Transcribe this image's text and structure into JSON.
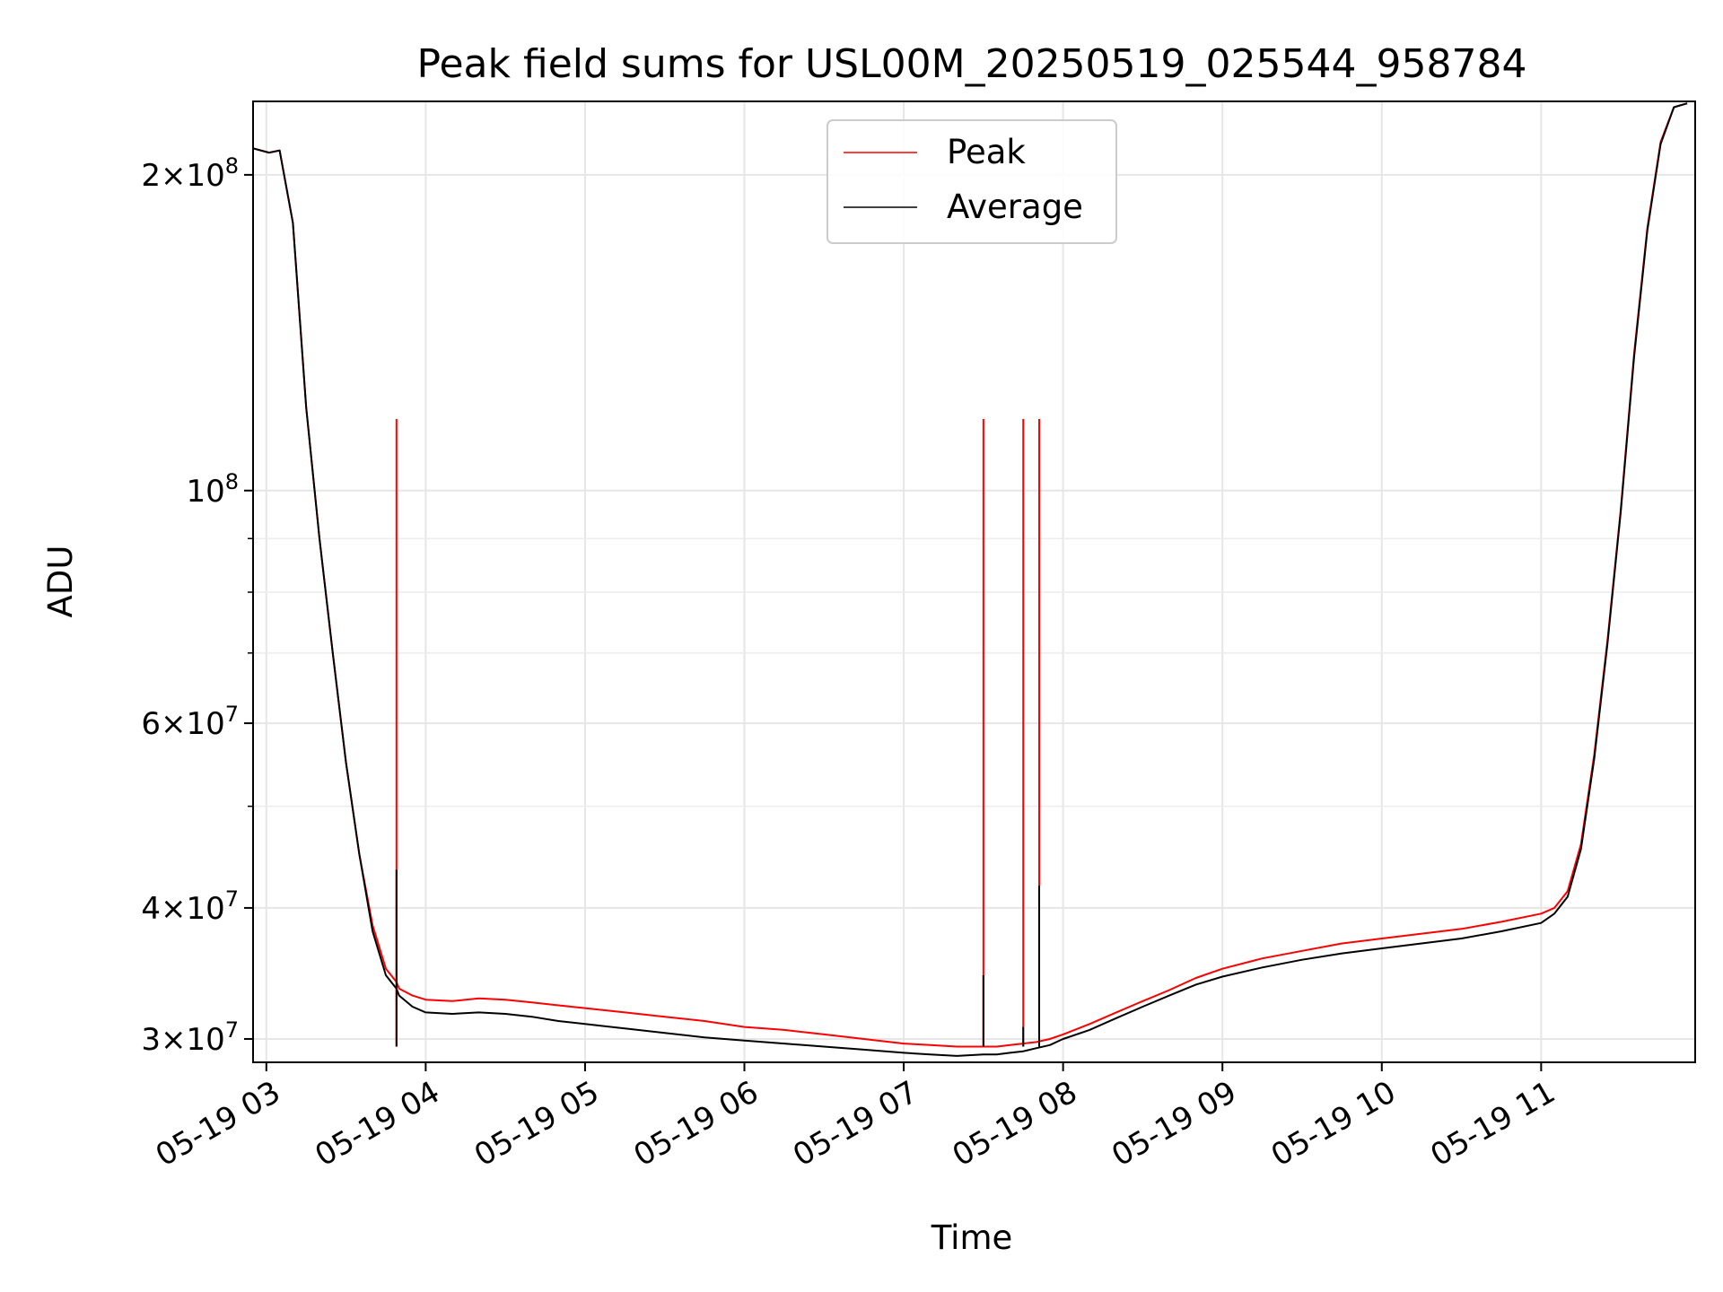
{
  "chart_data": {
    "type": "line",
    "title": "Peak field sums for USL00M_20250519_025544_958784",
    "xlabel": "Time",
    "ylabel": "ADU",
    "y_scale": "log",
    "ylim": [
      28500000,
      235000000
    ],
    "xlim": [
      "2025-05-19 02:55",
      "2025-05-19 11:58"
    ],
    "grid": true,
    "legend": {
      "placement": "top-center"
    },
    "x_ticks": [
      {
        "t": "2025-05-19 03:00",
        "label": "05-19 03"
      },
      {
        "t": "2025-05-19 04:00",
        "label": "05-19 04"
      },
      {
        "t": "2025-05-19 05:00",
        "label": "05-19 05"
      },
      {
        "t": "2025-05-19 06:00",
        "label": "05-19 06"
      },
      {
        "t": "2025-05-19 07:00",
        "label": "05-19 07"
      },
      {
        "t": "2025-05-19 08:00",
        "label": "05-19 08"
      },
      {
        "t": "2025-05-19 09:00",
        "label": "05-19 09"
      },
      {
        "t": "2025-05-19 10:00",
        "label": "05-19 10"
      },
      {
        "t": "2025-05-19 11:00",
        "label": "05-19 11"
      }
    ],
    "y_ticks": [
      {
        "v": 30000000,
        "mant": "3",
        "exp": "7"
      },
      {
        "v": 40000000,
        "mant": "4",
        "exp": "7"
      },
      {
        "v": 60000000,
        "mant": "6",
        "exp": "7"
      },
      {
        "v": 100000000,
        "mant": "",
        "exp": "8"
      },
      {
        "v": 200000000,
        "mant": "2",
        "exp": "8"
      }
    ],
    "y_minor_ticks": [
      50000000,
      70000000,
      80000000,
      90000000
    ],
    "series": [
      {
        "name": "Peak",
        "color": "#ff0000",
        "x": [
          "2025-05-19 02:55",
          "2025-05-19 03:01",
          "2025-05-19 03:05",
          "2025-05-19 03:10",
          "2025-05-19 03:15",
          "2025-05-19 03:20",
          "2025-05-19 03:25",
          "2025-05-19 03:30",
          "2025-05-19 03:35",
          "2025-05-19 03:40",
          "2025-05-19 03:45",
          "2025-05-19 03:49",
          "2025-05-19 03:50",
          "2025-05-19 03:55",
          "2025-05-19 04:00",
          "2025-05-19 04:10",
          "2025-05-19 04:20",
          "2025-05-19 04:30",
          "2025-05-19 04:40",
          "2025-05-19 04:50",
          "2025-05-19 05:00",
          "2025-05-19 05:15",
          "2025-05-19 05:30",
          "2025-05-19 05:45",
          "2025-05-19 06:00",
          "2025-05-19 06:15",
          "2025-05-19 06:30",
          "2025-05-19 06:45",
          "2025-05-19 07:00",
          "2025-05-19 07:10",
          "2025-05-19 07:20",
          "2025-05-19 07:30",
          "2025-05-19 07:35",
          "2025-05-19 07:40",
          "2025-05-19 07:45",
          "2025-05-19 07:50",
          "2025-05-19 07:55",
          "2025-05-19 08:00",
          "2025-05-19 08:10",
          "2025-05-19 08:20",
          "2025-05-19 08:30",
          "2025-05-19 08:40",
          "2025-05-19 08:50",
          "2025-05-19 09:00",
          "2025-05-19 09:15",
          "2025-05-19 09:30",
          "2025-05-19 09:45",
          "2025-05-19 10:00",
          "2025-05-19 10:15",
          "2025-05-19 10:30",
          "2025-05-19 10:45",
          "2025-05-19 11:00",
          "2025-05-19 11:05",
          "2025-05-19 11:10",
          "2025-05-19 11:15",
          "2025-05-19 11:20",
          "2025-05-19 11:25",
          "2025-05-19 11:30",
          "2025-05-19 11:35",
          "2025-05-19 11:40",
          "2025-05-19 11:45",
          "2025-05-19 11:50",
          "2025-05-19 11:55"
        ],
        "y": [
          212000000,
          210000000,
          211000000,
          180000000,
          120000000,
          90000000,
          70000000,
          55000000,
          45000000,
          38500000,
          35000000,
          34000000,
          33500000,
          33000000,
          32700000,
          32600000,
          32800000,
          32700000,
          32500000,
          32300000,
          32100000,
          31800000,
          31500000,
          31200000,
          30800000,
          30600000,
          30300000,
          30000000,
          29700000,
          29600000,
          29500000,
          29500000,
          29500000,
          29600000,
          29700000,
          29800000,
          30000000,
          30300000,
          31000000,
          31800000,
          32600000,
          33400000,
          34300000,
          35000000,
          35800000,
          36400000,
          37000000,
          37400000,
          37800000,
          38200000,
          38800000,
          39500000,
          40000000,
          41500000,
          46000000,
          56000000,
          72000000,
          96000000,
          135000000,
          178000000,
          215000000,
          232000000,
          234000000
        ]
      },
      {
        "name": "Average",
        "color": "#000000",
        "x": [
          "2025-05-19 02:55",
          "2025-05-19 03:01",
          "2025-05-19 03:05",
          "2025-05-19 03:10",
          "2025-05-19 03:15",
          "2025-05-19 03:20",
          "2025-05-19 03:25",
          "2025-05-19 03:30",
          "2025-05-19 03:35",
          "2025-05-19 03:40",
          "2025-05-19 03:45",
          "2025-05-19 03:49",
          "2025-05-19 03:50",
          "2025-05-19 03:55",
          "2025-05-19 04:00",
          "2025-05-19 04:10",
          "2025-05-19 04:20",
          "2025-05-19 04:30",
          "2025-05-19 04:40",
          "2025-05-19 04:50",
          "2025-05-19 05:00",
          "2025-05-19 05:15",
          "2025-05-19 05:30",
          "2025-05-19 05:45",
          "2025-05-19 06:00",
          "2025-05-19 06:15",
          "2025-05-19 06:30",
          "2025-05-19 06:45",
          "2025-05-19 07:00",
          "2025-05-19 07:10",
          "2025-05-19 07:20",
          "2025-05-19 07:30",
          "2025-05-19 07:35",
          "2025-05-19 07:40",
          "2025-05-19 07:45",
          "2025-05-19 07:50",
          "2025-05-19 07:55",
          "2025-05-19 08:00",
          "2025-05-19 08:10",
          "2025-05-19 08:20",
          "2025-05-19 08:30",
          "2025-05-19 08:40",
          "2025-05-19 08:50",
          "2025-05-19 09:00",
          "2025-05-19 09:15",
          "2025-05-19 09:30",
          "2025-05-19 09:45",
          "2025-05-19 10:00",
          "2025-05-19 10:15",
          "2025-05-19 10:30",
          "2025-05-19 10:45",
          "2025-05-19 11:00",
          "2025-05-19 11:05",
          "2025-05-19 11:10",
          "2025-05-19 11:15",
          "2025-05-19 11:20",
          "2025-05-19 11:25",
          "2025-05-19 11:30",
          "2025-05-19 11:35",
          "2025-05-19 11:40",
          "2025-05-19 11:45",
          "2025-05-19 11:50",
          "2025-05-19 11:55"
        ],
        "y": [
          212000000,
          210000000,
          211000000,
          180000000,
          120000000,
          90000000,
          70000000,
          55000000,
          45000000,
          38000000,
          34500000,
          33500000,
          33000000,
          32200000,
          31800000,
          31700000,
          31800000,
          31700000,
          31500000,
          31200000,
          31000000,
          30700000,
          30400000,
          30100000,
          29900000,
          29700000,
          29500000,
          29300000,
          29100000,
          29000000,
          28900000,
          29000000,
          29000000,
          29100000,
          29200000,
          29400000,
          29600000,
          30000000,
          30600000,
          31400000,
          32200000,
          33000000,
          33800000,
          34400000,
          35100000,
          35700000,
          36200000,
          36600000,
          37000000,
          37400000,
          38000000,
          38700000,
          39500000,
          41000000,
          45500000,
          55500000,
          71500000,
          95500000,
          134000000,
          177000000,
          214000000,
          232000000,
          234000000
        ]
      }
    ],
    "spikes": [
      {
        "t": "2025-05-19 03:49",
        "peak": 117000000,
        "average": 43500000
      },
      {
        "t": "2025-05-19 07:30",
        "peak": 117000000,
        "average": 34500000
      },
      {
        "t": "2025-05-19 07:45",
        "peak": 117000000,
        "average": 30800000
      },
      {
        "t": "2025-05-19 07:51",
        "peak": 117000000,
        "average": 42000000
      }
    ]
  }
}
